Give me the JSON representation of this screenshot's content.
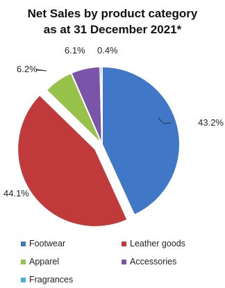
{
  "chart_data": {
    "type": "pie",
    "title_lines": [
      "Net Sales by product category",
      "as at 31 December 2021*"
    ],
    "slices": [
      {
        "name": "Footwear",
        "value": 43.2,
        "label": "43.2%",
        "color": "#4077C6",
        "exploded": false
      },
      {
        "name": "Leather goods",
        "value": 44.1,
        "label": "44.1%",
        "color": "#C0393B",
        "exploded": true
      },
      {
        "name": "Apparel",
        "value": 6.2,
        "label": "6.2%",
        "color": "#97C24A",
        "exploded": false
      },
      {
        "name": "Accessories",
        "value": 6.1,
        "label": "6.1%",
        "color": "#7A54A8",
        "exploded": false
      },
      {
        "name": "Fragrances",
        "value": 0.4,
        "label": "0.4%",
        "color": "#3FB4D6",
        "exploded": false
      }
    ],
    "legend_placement": "bottom"
  }
}
